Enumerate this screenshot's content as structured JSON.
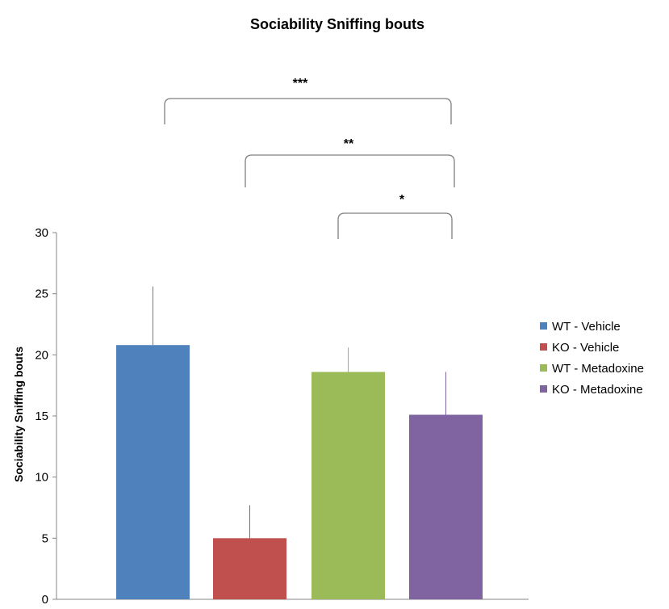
{
  "chart_data": {
    "type": "bar",
    "title": "Sociability Sniffing bouts",
    "ylabel": "Sociability Sniffing bouts",
    "xlabel": "",
    "ylim": [
      0,
      30
    ],
    "yticks": [
      0,
      5,
      10,
      15,
      20,
      25,
      30
    ],
    "grid": false,
    "legend_position": "right",
    "series": [
      {
        "name": "WT - Vehicle",
        "value": 20.8,
        "error": 4.8,
        "color": "#4F81BD"
      },
      {
        "name": "KO - Vehicle",
        "value": 5.0,
        "error": 2.7,
        "color": "#C0504D"
      },
      {
        "name": "WT - Metadoxine",
        "value": 18.6,
        "error": 2.0,
        "color": "#9BBB59"
      },
      {
        "name": "KO - Metadoxine",
        "value": 15.1,
        "error": 3.5,
        "color": "#8064A2"
      }
    ],
    "significance": [
      {
        "from": 0,
        "to": 3,
        "label": "***"
      },
      {
        "from": 1,
        "to": 3,
        "label": "**"
      },
      {
        "from": 2,
        "to": 3,
        "label": "*"
      }
    ]
  }
}
